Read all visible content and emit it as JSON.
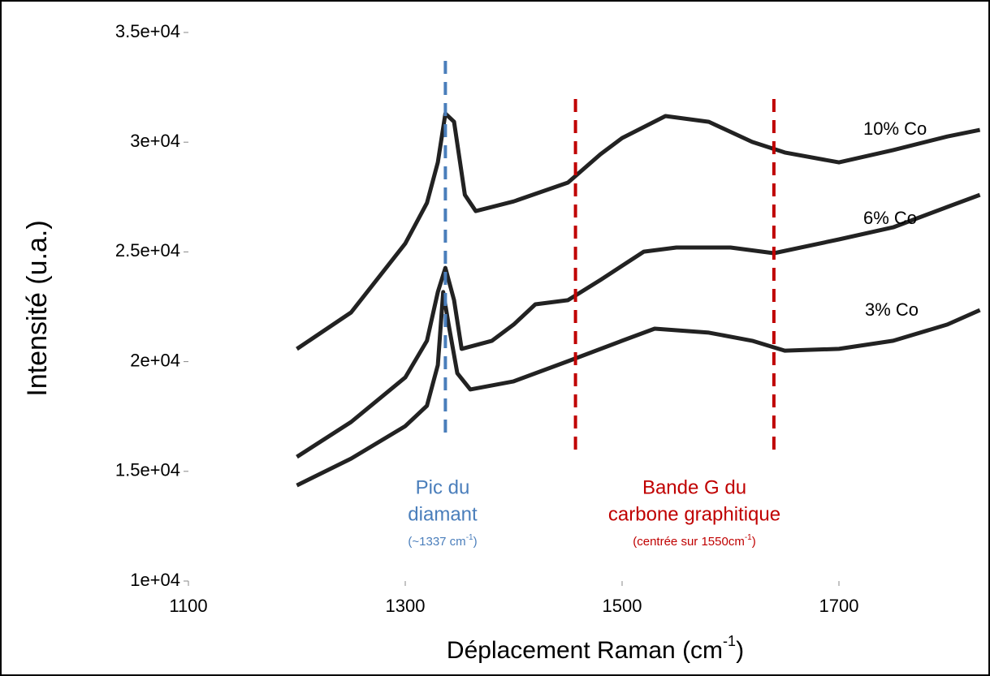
{
  "chart_data": {
    "type": "line",
    "ylabel": "Intensité (u.a.)",
    "xlabel": {
      "text": "Déplacement Raman (cm",
      "sup": "-1",
      "tail": ")"
    },
    "xlim": [
      1100,
      1830
    ],
    "ylim": [
      10000,
      35000
    ],
    "xticks": [
      1100,
      1300,
      1500,
      1700
    ],
    "yticks": [
      {
        "value": 10000,
        "label": "1e+04"
      },
      {
        "value": 15000,
        "label": "1.5e+04"
      },
      {
        "value": 20000,
        "label": "2e+04"
      },
      {
        "value": 25000,
        "label": "2.5e+04"
      },
      {
        "value": 30000,
        "label": "3e+04"
      },
      {
        "value": 35000,
        "label": "3.5e+04"
      }
    ],
    "series": [
      {
        "name": "10% Co",
        "color": "#222222",
        "x": [
          1200,
          1250,
          1300,
          1320,
          1330,
          1337,
          1345,
          1355,
          1365,
          1400,
          1450,
          1480,
          1500,
          1540,
          1580,
          1620,
          1650,
          1700,
          1750,
          1800,
          1830
        ],
        "values": [
          20576,
          22240,
          25380,
          27230,
          29080,
          31300,
          30930,
          27600,
          26860,
          27300,
          28160,
          29450,
          30190,
          31190,
          30930,
          30010,
          29530,
          29080,
          29640,
          30260,
          30560
        ]
      },
      {
        "name": "6% Co",
        "color": "#222222",
        "x": [
          1200,
          1250,
          1300,
          1320,
          1330,
          1337,
          1345,
          1352,
          1380,
          1400,
          1420,
          1450,
          1480,
          1520,
          1550,
          1600,
          1640,
          1700,
          1750,
          1800,
          1830
        ],
        "values": [
          15660,
          17250,
          19280,
          20950,
          23170,
          24270,
          22800,
          20580,
          20950,
          21690,
          22610,
          22800,
          23720,
          25010,
          25200,
          25200,
          24940,
          25570,
          26120,
          27050,
          27600
        ]
      },
      {
        "name": "3% Co",
        "color": "#222222",
        "x": [
          1200,
          1250,
          1300,
          1320,
          1330,
          1335,
          1340,
          1348,
          1360,
          1400,
          1450,
          1500,
          1530,
          1580,
          1620,
          1650,
          1700,
          1750,
          1800,
          1830
        ],
        "values": [
          14360,
          15580,
          17060,
          17990,
          19840,
          23170,
          21690,
          19470,
          18730,
          19100,
          20020,
          20950,
          21500,
          21320,
          20950,
          20500,
          20580,
          20950,
          21690,
          22350
        ]
      }
    ],
    "vlines": [
      {
        "x": 1337,
        "color": "#4a7ebb"
      },
      {
        "x": 1457,
        "color": "#c00000"
      },
      {
        "x": 1640,
        "color": "#c00000"
      }
    ],
    "annotations": [
      {
        "lines": [
          "Pic du",
          "diamant"
        ],
        "note": [
          "(~1337 cm",
          "-1",
          ")"
        ],
        "color": "#4a7ebb"
      },
      {
        "lines": [
          "Bande G du",
          "carbone graphitique"
        ],
        "note": [
          "(centrée sur 1550cm",
          "-1",
          ")"
        ],
        "color": "#c00000"
      }
    ]
  }
}
